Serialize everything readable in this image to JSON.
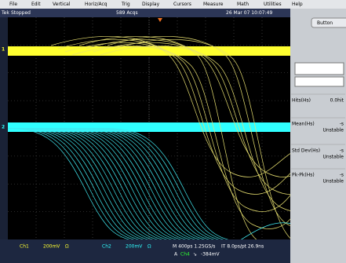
{
  "menu": [
    "File",
    "Edit",
    "Vertical",
    "Horiz/Acq",
    "Trig",
    "Display",
    "Cursors",
    "Measure",
    "Math",
    "Utilities",
    "Help"
  ],
  "status": {
    "brand": "Tek",
    "state": "Stopped",
    "acqs": "589 Acqs",
    "timestamp": "26 Mar 07 10:07:49"
  },
  "markers": {
    "ch1": "1",
    "ch2": "2"
  },
  "side_panel": {
    "button": "Button",
    "measurements": [
      {
        "label": "Hits(Hs)",
        "value": "0.0hit"
      },
      {
        "label": "Mean(Hs)",
        "value": "-s",
        "status": "Unstable"
      },
      {
        "label": "Std Dev(Hs)",
        "value": "-s",
        "status": "Unstable"
      },
      {
        "label": "Pk-Pk(Hs)",
        "value": "-s",
        "status": "Unstable"
      }
    ]
  },
  "footer": {
    "ch1": {
      "name": "Ch1",
      "scale": "200mV",
      "coupling": "Ω"
    },
    "ch2": {
      "name": "Ch2",
      "scale": "200mV",
      "coupling": "Ω"
    },
    "horizontal": "M 400ps 1.25GS/s",
    "record": "IT 8.0ps/pt 26.9ns",
    "trigger": {
      "source": "A",
      "channel": "Ch4",
      "slope": "↘",
      "level": "-384mV"
    }
  }
}
